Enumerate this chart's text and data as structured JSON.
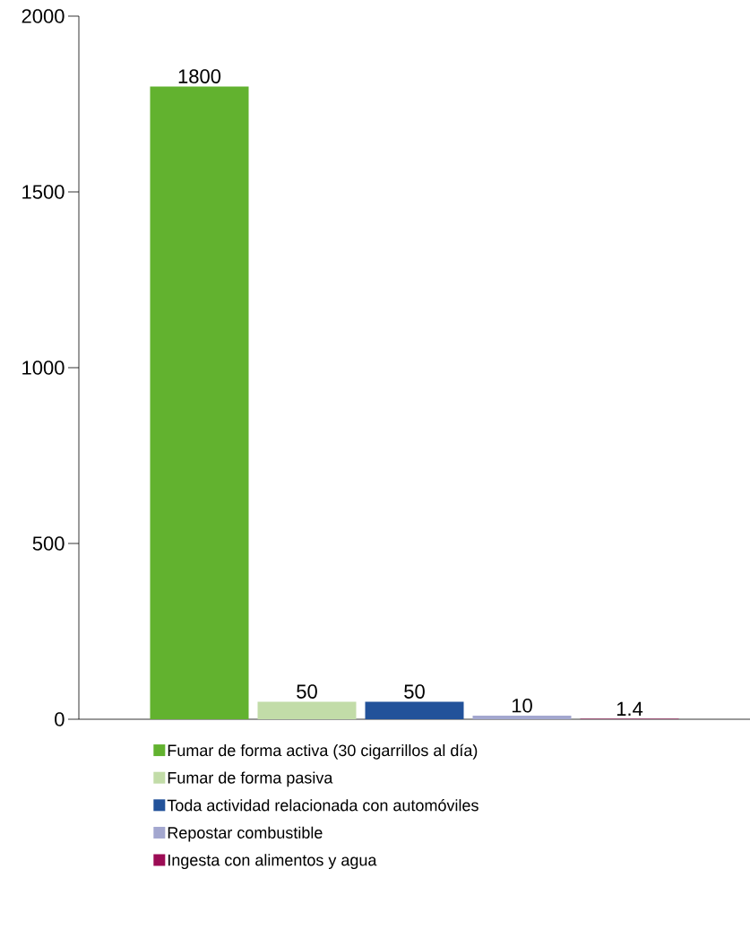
{
  "chart_data": {
    "type": "bar",
    "categories": [
      null
    ],
    "series": [
      {
        "name": "Fumar de forma activa (30 cigarrillos al día)",
        "color": "#62b22f",
        "values": [
          1800
        ]
      },
      {
        "name": "Fumar de forma pasiva",
        "color": "#c2dca8",
        "values": [
          50
        ]
      },
      {
        "name": "Toda actividad relacionada con automóviles",
        "color": "#22529a",
        "values": [
          50
        ]
      },
      {
        "name": "Repostar combustible",
        "color": "#a3a7cf",
        "values": [
          10
        ]
      },
      {
        "name": "Ingesta con alimentos y agua",
        "color": "#9c0c55",
        "values": [
          1.4
        ]
      }
    ],
    "ylim": [
      0,
      2000
    ],
    "yticks": [
      0,
      500,
      1000,
      1500,
      2000
    ],
    "data_labels": true,
    "legend": "bottom",
    "grid": false
  }
}
